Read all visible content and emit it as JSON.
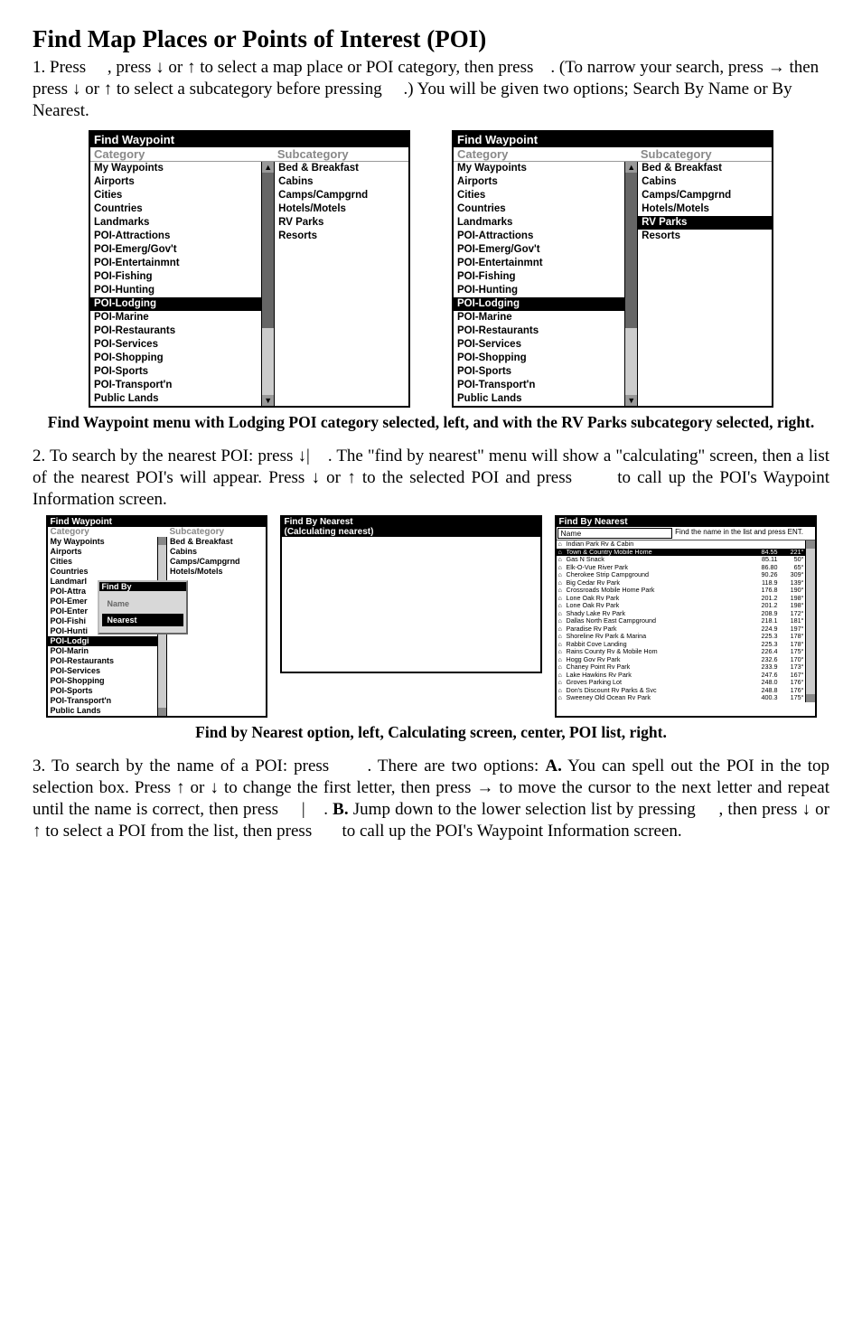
{
  "title": "Find Map Places or Points of Interest (POI)",
  "para1_parts": {
    "a": "1. Press     , press ",
    "down": "↓",
    "b": " or ",
    "up": "↑",
    "c": " to select a map place or POI category, then press    . (To narrow your search, press ",
    "right": "→",
    "d": " then press ",
    "e": " to select a subcategory before pressing     .) You will be given two options; Search By Name or By Nearest."
  },
  "wp": {
    "title": "Find Waypoint",
    "cat_header": "Category",
    "sub_header": "Subcategory",
    "categories": [
      "My Waypoints",
      "Airports",
      "Cities",
      "Countries",
      "Landmarks",
      "POI-Attractions",
      "POI-Emerg/Gov't",
      "POI-Entertainmnt",
      "POI-Fishing",
      "POI-Hunting",
      "POI-Lodging",
      "POI-Marine",
      "POI-Restaurants",
      "POI-Services",
      "POI-Shopping",
      "POI-Sports",
      "POI-Transport'n",
      "Public Lands"
    ],
    "hl_index": 10,
    "subcats": [
      "Bed & Breakfast",
      "Cabins",
      "Camps/Campgrnd",
      "Hotels/Motels",
      "RV Parks",
      "Resorts"
    ],
    "left_hl_sub": -1,
    "right_hl_sub": 4
  },
  "caption1": "Find Waypoint menu with Lodging POI category selected, left, and with the RV Parks subcategory selected, right.",
  "para2_parts": {
    "a": "2. To search by the nearest POI: press ",
    "down": "↓",
    "b": "|    . The \"find by nearest\" menu will show a \"calculating\" screen, then a list of the nearest POI's will appear. Press ",
    "c": " or ",
    "up": "↑",
    "d": " to the selected POI and press       to call up the POI's Waypoint Information screen."
  },
  "panelA": {
    "title": "Find Waypoint",
    "cat_header": "Category",
    "sub_header": "Subcategory",
    "cats": [
      "My Waypoints",
      "Airports",
      "Cities",
      "Countries",
      "Landmarl",
      "POI-Attra",
      "POI-Emer",
      "POI-Enter",
      "POI-Fishi",
      "POI-Hunti",
      "POI-Lodgi",
      "POI-Marin",
      "POI-Restaurants",
      "POI-Services",
      "POI-Shopping",
      "POI-Sports",
      "POI-Transport'n",
      "Public Lands"
    ],
    "hl_index": 10,
    "subs": [
      "Bed & Breakfast",
      "Cabins",
      "Camps/Campgrnd",
      "Hotels/Motels"
    ],
    "popup_title": "Find By",
    "popup_opts": [
      "Name",
      "Nearest"
    ],
    "popup_sel": 1
  },
  "panelB": {
    "title": "Find By Nearest",
    "calc": "(Calculating nearest)"
  },
  "panelC": {
    "title": "Find By Nearest",
    "name_label": "Name",
    "msg": "Find the name in the list and press ENT.",
    "rows": [
      {
        "nm": "Indian Park Rv & Cabin",
        "d": "",
        "b": ""
      },
      {
        "nm": "Town & Country Mobile Home",
        "d": "84.55",
        "b": "221°",
        "hl": true
      },
      {
        "nm": "Gas N Snack",
        "d": "85.11",
        "b": "50°"
      },
      {
        "nm": "Elk-O-Vue River Park",
        "d": "86.80",
        "b": "65°"
      },
      {
        "nm": "Cherokee Strip Campground",
        "d": "90.26",
        "b": "309°"
      },
      {
        "nm": "Big Cedar Rv Park",
        "d": "118.9",
        "b": "139°"
      },
      {
        "nm": "Crossroads Mobile Home Park",
        "d": "176.8",
        "b": "190°"
      },
      {
        "nm": "Lone Oak Rv Park",
        "d": "201.2",
        "b": "198°"
      },
      {
        "nm": "Lone Oak Rv Park",
        "d": "201.2",
        "b": "198°"
      },
      {
        "nm": "Shady Lake Rv Park",
        "d": "208.9",
        "b": "172°"
      },
      {
        "nm": "Dallas North East Campground",
        "d": "218.1",
        "b": "181°"
      },
      {
        "nm": "Paradise Rv Park",
        "d": "224.9",
        "b": "197°"
      },
      {
        "nm": "Shoreline Rv Park & Marina",
        "d": "225.3",
        "b": "178°"
      },
      {
        "nm": "Rabbit Cove Landing",
        "d": "225.3",
        "b": "178°"
      },
      {
        "nm": "Rains County Rv & Mobile Hom",
        "d": "226.4",
        "b": "175°"
      },
      {
        "nm": "Hogg Gov Rv Park",
        "d": "232.6",
        "b": "170°"
      },
      {
        "nm": "Chaney Point Rv Park",
        "d": "233.9",
        "b": "173°"
      },
      {
        "nm": "Lake Hawkins Rv Park",
        "d": "247.6",
        "b": "167°"
      },
      {
        "nm": "Groves Parking Lot",
        "d": "248.0",
        "b": "176°"
      },
      {
        "nm": "Don's Discount Rv Parks & Svc",
        "d": "248.8",
        "b": "176°"
      },
      {
        "nm": "Sweeney Old Ocean Rv Park",
        "d": "400.3",
        "b": "175°"
      }
    ]
  },
  "caption2": "Find by Nearest option, left, Calculating screen, center, POI list, right.",
  "para3_parts": {
    "a": "3. To search by the name of a POI: press      . There are two options: ",
    "A": "A.",
    "b": " You can spell out the POI in the top selection box. Press ",
    "up": "↑",
    "c": " or ",
    "down": "↓",
    "d": " to change the first letter, then press ",
    "right": "→",
    "e": " to move the cursor to the next letter and repeat until the name is correct, then press     |    . ",
    "B": "B.",
    "f": " Jump down to the lower selection list by pressing     , then press ",
    "g": " to select a POI from the list, then press       to call up the POI's Waypoint Information screen."
  }
}
